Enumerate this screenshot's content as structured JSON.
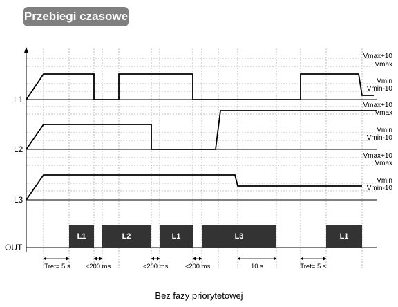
{
  "header": {
    "title": "Przebiegi czasowe"
  },
  "caption": "Bez fazy priorytetowej",
  "channels": [
    {
      "label": "L1",
      "levels": [
        "Vmax+10",
        "Vmax",
        "Vmin",
        "Vmin-10"
      ]
    },
    {
      "label": "L2",
      "levels": [
        "Vmax+10",
        "Vmax",
        "Vmin",
        "Vmin-10"
      ]
    },
    {
      "label": "L3",
      "levels": [
        "Vmax+10",
        "Vmax",
        "Vmin",
        "Vmin-10"
      ]
    }
  ],
  "output": {
    "label": "OUT",
    "pulses": [
      "L1",
      "L2",
      "L1",
      "L3",
      "L1"
    ]
  },
  "intervals": [
    "Tret= 5 s",
    "<200 ms",
    "<200 ms",
    "<200 ms",
    "10 s",
    "Tret= 5 s"
  ],
  "colors": {
    "pulse_fill": "#333333",
    "header_bg": "#7f7f7f",
    "line": "#000000",
    "grid": "#aaaaaa"
  }
}
